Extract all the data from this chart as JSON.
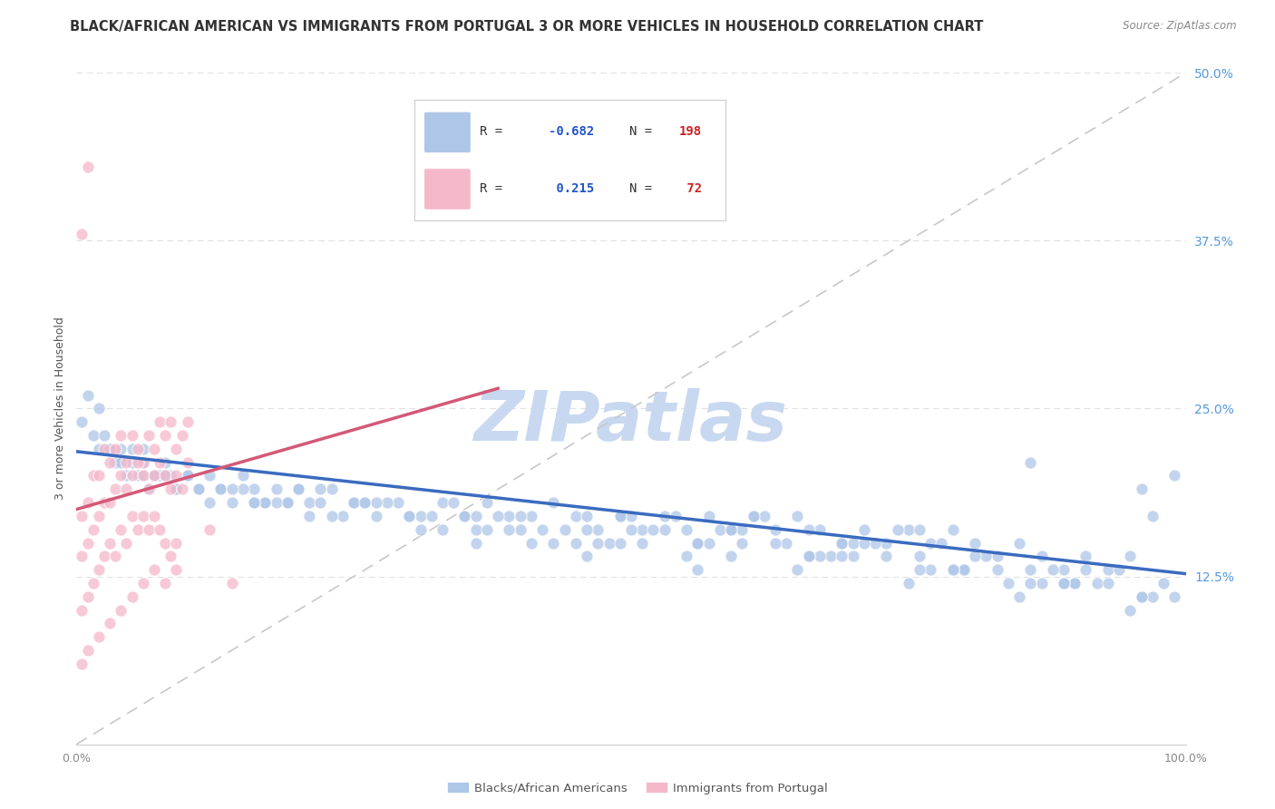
{
  "title": "BLACK/AFRICAN AMERICAN VS IMMIGRANTS FROM PORTUGAL 3 OR MORE VEHICLES IN HOUSEHOLD CORRELATION CHART",
  "source": "Source: ZipAtlas.com",
  "ylabel": "3 or more Vehicles in Household",
  "xlim": [
    0,
    1.0
  ],
  "ylim": [
    0,
    0.5
  ],
  "ytick_vals": [
    0.125,
    0.25,
    0.375,
    0.5
  ],
  "ytick_labels": [
    "12.5%",
    "25.0%",
    "37.5%",
    "50.0%"
  ],
  "xtick_vals": [
    0.0,
    0.25,
    0.5,
    0.75,
    1.0
  ],
  "xtick_labels": [
    "0.0%",
    "",
    "",
    "",
    "100.0%"
  ],
  "blue_R": -0.682,
  "blue_N": 198,
  "pink_R": 0.215,
  "pink_N": 72,
  "blue_color": "#aec6e8",
  "pink_color": "#f5b8ca",
  "blue_line_color": "#3a6bbf",
  "pink_line_color": "#d45878",
  "diag_line_color": "#c8c8c8",
  "legend_R_color": "#2255cc",
  "legend_N_color": "#cc2222",
  "watermark": "ZIPatlas",
  "watermark_color": "#c8d8f0",
  "background_color": "#ffffff",
  "grid_color": "#e0e0e0",
  "title_fontsize": 10.5,
  "source_fontsize": 8.5,
  "axis_label_fontsize": 9,
  "tick_fontsize": 9,
  "blue_line_x0": 0.0,
  "blue_line_x1": 1.0,
  "blue_line_y0": 0.218,
  "blue_line_y1": 0.127,
  "pink_line_x0": 0.0,
  "pink_line_x1": 0.38,
  "pink_line_y0": 0.175,
  "pink_line_y1": 0.265,
  "blue_scatter_x": [
    0.005,
    0.01,
    0.015,
    0.02,
    0.025,
    0.03,
    0.035,
    0.04,
    0.045,
    0.05,
    0.055,
    0.06,
    0.065,
    0.07,
    0.075,
    0.08,
    0.085,
    0.09,
    0.1,
    0.11,
    0.12,
    0.13,
    0.14,
    0.15,
    0.16,
    0.17,
    0.18,
    0.19,
    0.2,
    0.21,
    0.22,
    0.23,
    0.25,
    0.27,
    0.29,
    0.31,
    0.33,
    0.35,
    0.37,
    0.39,
    0.41,
    0.43,
    0.45,
    0.47,
    0.49,
    0.51,
    0.53,
    0.55,
    0.57,
    0.59,
    0.61,
    0.63,
    0.65,
    0.67,
    0.69,
    0.71,
    0.73,
    0.75,
    0.77,
    0.79,
    0.81,
    0.83,
    0.85,
    0.87,
    0.89,
    0.91,
    0.93,
    0.95,
    0.97,
    0.99,
    0.03,
    0.06,
    0.09,
    0.12,
    0.15,
    0.18,
    0.22,
    0.26,
    0.3,
    0.34,
    0.38,
    0.42,
    0.46,
    0.5,
    0.54,
    0.58,
    0.62,
    0.66,
    0.7,
    0.74,
    0.78,
    0.82,
    0.86,
    0.9,
    0.94,
    0.98,
    0.04,
    0.08,
    0.13,
    0.17,
    0.24,
    0.28,
    0.32,
    0.36,
    0.4,
    0.44,
    0.48,
    0.52,
    0.56,
    0.6,
    0.64,
    0.68,
    0.72,
    0.76,
    0.8,
    0.84,
    0.88,
    0.92,
    0.96,
    0.02,
    0.05,
    0.1,
    0.2,
    0.3,
    0.4,
    0.5,
    0.6,
    0.7,
    0.8,
    0.9,
    0.07,
    0.11,
    0.16,
    0.21,
    0.31,
    0.41,
    0.53,
    0.63,
    0.73,
    0.83,
    0.93,
    0.14,
    0.19,
    0.23,
    0.27,
    0.37,
    0.47,
    0.55,
    0.65,
    0.75,
    0.85,
    0.95,
    0.33,
    0.43,
    0.57,
    0.67,
    0.77,
    0.87,
    0.97,
    0.35,
    0.45,
    0.69,
    0.79,
    0.89,
    0.99,
    0.25,
    0.51,
    0.61,
    0.71,
    0.81,
    0.91,
    0.39,
    0.49,
    0.59,
    0.49,
    0.59,
    0.69,
    0.79,
    0.89,
    0.26,
    0.36,
    0.46,
    0.56,
    0.66,
    0.76,
    0.86,
    0.96,
    0.06,
    0.16,
    0.86,
    0.96,
    0.76,
    0.66,
    0.56,
    0.46,
    0.36
  ],
  "blue_scatter_y": [
    0.24,
    0.26,
    0.23,
    0.22,
    0.23,
    0.22,
    0.21,
    0.22,
    0.2,
    0.21,
    0.2,
    0.21,
    0.19,
    0.2,
    0.2,
    0.21,
    0.2,
    0.19,
    0.2,
    0.19,
    0.2,
    0.19,
    0.18,
    0.2,
    0.19,
    0.18,
    0.19,
    0.18,
    0.19,
    0.18,
    0.18,
    0.19,
    0.18,
    0.17,
    0.18,
    0.17,
    0.18,
    0.17,
    0.18,
    0.17,
    0.17,
    0.18,
    0.17,
    0.16,
    0.17,
    0.16,
    0.17,
    0.16,
    0.17,
    0.16,
    0.17,
    0.16,
    0.17,
    0.16,
    0.15,
    0.16,
    0.15,
    0.16,
    0.15,
    0.16,
    0.15,
    0.14,
    0.15,
    0.14,
    0.13,
    0.14,
    0.13,
    0.14,
    0.17,
    0.2,
    0.22,
    0.2,
    0.19,
    0.18,
    0.19,
    0.18,
    0.19,
    0.18,
    0.17,
    0.18,
    0.17,
    0.16,
    0.17,
    0.16,
    0.17,
    0.16,
    0.17,
    0.16,
    0.15,
    0.16,
    0.15,
    0.14,
    0.13,
    0.12,
    0.13,
    0.12,
    0.21,
    0.2,
    0.19,
    0.18,
    0.17,
    0.18,
    0.17,
    0.16,
    0.17,
    0.16,
    0.15,
    0.16,
    0.15,
    0.16,
    0.15,
    0.14,
    0.15,
    0.14,
    0.13,
    0.12,
    0.13,
    0.12,
    0.11,
    0.25,
    0.22,
    0.2,
    0.19,
    0.17,
    0.16,
    0.17,
    0.15,
    0.14,
    0.13,
    0.12,
    0.2,
    0.19,
    0.18,
    0.17,
    0.16,
    0.15,
    0.16,
    0.15,
    0.14,
    0.13,
    0.12,
    0.19,
    0.18,
    0.17,
    0.18,
    0.16,
    0.15,
    0.14,
    0.13,
    0.12,
    0.11,
    0.1,
    0.16,
    0.15,
    0.15,
    0.14,
    0.13,
    0.12,
    0.11,
    0.17,
    0.15,
    0.14,
    0.13,
    0.12,
    0.11,
    0.18,
    0.15,
    0.17,
    0.15,
    0.14,
    0.13,
    0.16,
    0.15,
    0.14,
    0.17,
    0.16,
    0.15,
    0.13,
    0.12,
    0.18,
    0.17,
    0.16,
    0.15,
    0.14,
    0.13,
    0.12,
    0.11,
    0.22,
    0.18,
    0.21,
    0.19,
    0.16,
    0.14,
    0.13,
    0.14,
    0.15
  ],
  "pink_scatter_x": [
    0.005,
    0.01,
    0.015,
    0.02,
    0.025,
    0.03,
    0.035,
    0.04,
    0.045,
    0.05,
    0.055,
    0.06,
    0.065,
    0.07,
    0.075,
    0.08,
    0.085,
    0.09,
    0.095,
    0.1,
    0.005,
    0.01,
    0.015,
    0.02,
    0.025,
    0.03,
    0.035,
    0.04,
    0.045,
    0.05,
    0.055,
    0.06,
    0.065,
    0.07,
    0.075,
    0.08,
    0.085,
    0.09,
    0.095,
    0.1,
    0.005,
    0.01,
    0.015,
    0.02,
    0.025,
    0.03,
    0.035,
    0.04,
    0.045,
    0.05,
    0.055,
    0.06,
    0.065,
    0.07,
    0.075,
    0.08,
    0.085,
    0.09,
    0.12,
    0.14,
    0.005,
    0.01,
    0.02,
    0.03,
    0.04,
    0.05,
    0.06,
    0.07,
    0.08,
    0.09,
    0.005,
    0.01
  ],
  "pink_scatter_y": [
    0.17,
    0.18,
    0.2,
    0.2,
    0.22,
    0.21,
    0.22,
    0.23,
    0.21,
    0.23,
    0.22,
    0.21,
    0.23,
    0.22,
    0.24,
    0.23,
    0.24,
    0.22,
    0.23,
    0.24,
    0.14,
    0.15,
    0.16,
    0.17,
    0.18,
    0.18,
    0.19,
    0.2,
    0.19,
    0.2,
    0.21,
    0.2,
    0.19,
    0.2,
    0.21,
    0.2,
    0.19,
    0.2,
    0.19,
    0.21,
    0.1,
    0.11,
    0.12,
    0.13,
    0.14,
    0.15,
    0.14,
    0.16,
    0.15,
    0.17,
    0.16,
    0.17,
    0.16,
    0.17,
    0.16,
    0.15,
    0.14,
    0.15,
    0.16,
    0.12,
    0.06,
    0.07,
    0.08,
    0.09,
    0.1,
    0.11,
    0.12,
    0.13,
    0.12,
    0.13,
    0.38,
    0.43
  ]
}
